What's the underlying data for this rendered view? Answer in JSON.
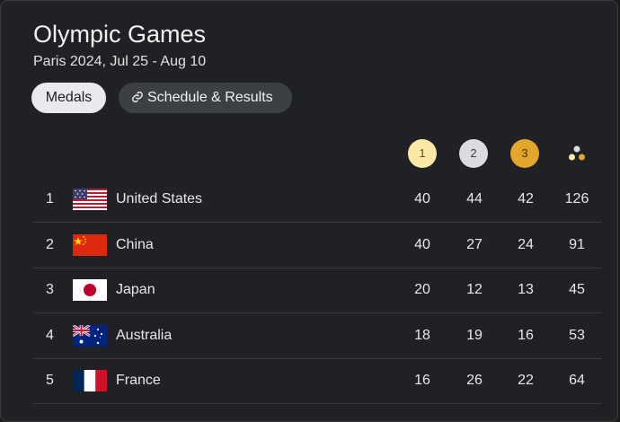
{
  "title": "Olympic Games",
  "subtitle": "Paris 2024, Jul 25 - Aug 10",
  "tabs": {
    "medals_label": "Medals",
    "schedule_label": "Schedule & Results"
  },
  "columns": {
    "gold_label": "1",
    "silver_label": "2",
    "bronze_label": "3",
    "total_icon": "medals-total-icon"
  },
  "colors": {
    "gold": "#fce9a8",
    "silver": "#dadce0",
    "bronze": "#e3a62d"
  },
  "rows": [
    {
      "rank": "1",
      "country": "United States",
      "flag": "us-flag",
      "gold": "40",
      "silver": "44",
      "bronze": "42",
      "total": "126"
    },
    {
      "rank": "2",
      "country": "China",
      "flag": "china-flag",
      "gold": "40",
      "silver": "27",
      "bronze": "24",
      "total": "91"
    },
    {
      "rank": "3",
      "country": "Japan",
      "flag": "japan-flag",
      "gold": "20",
      "silver": "12",
      "bronze": "13",
      "total": "45"
    },
    {
      "rank": "4",
      "country": "Australia",
      "flag": "australia-flag",
      "gold": "18",
      "silver": "19",
      "bronze": "16",
      "total": "53"
    },
    {
      "rank": "5",
      "country": "France",
      "flag": "france-flag",
      "gold": "16",
      "silver": "26",
      "bronze": "22",
      "total": "64"
    }
  ]
}
